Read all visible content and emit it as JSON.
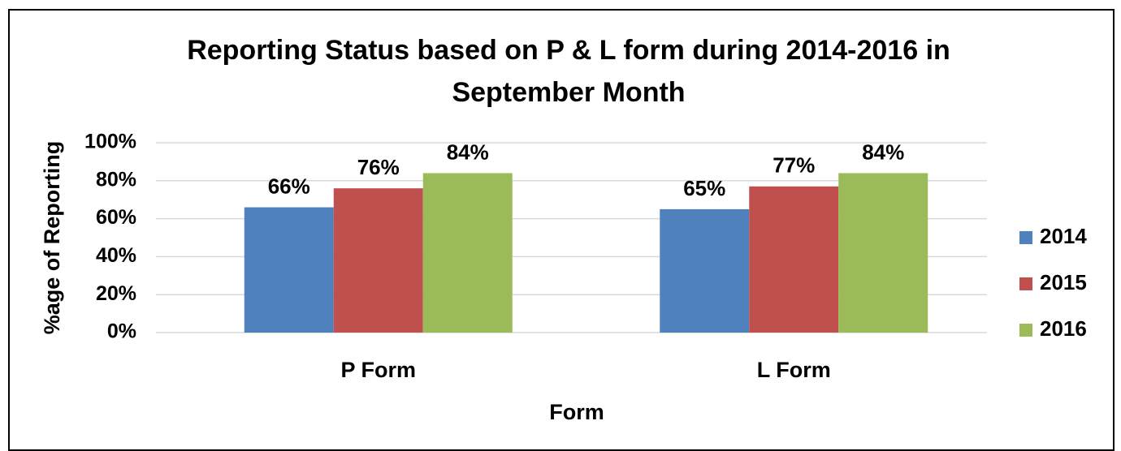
{
  "chart_data": {
    "type": "bar",
    "title": [
      "Reporting Status based on P & L form during 2014-2016 in",
      "September Month"
    ],
    "x_label": "Form",
    "y_label": "%age of Reporting",
    "categories": [
      "P Form",
      "L Form"
    ],
    "series": [
      {
        "name": "2014",
        "color": "#4f81bd",
        "values": [
          66,
          65
        ],
        "value_labels": [
          "66%",
          "65%"
        ]
      },
      {
        "name": "2015",
        "color": "#c0504d",
        "values": [
          76,
          77
        ],
        "value_labels": [
          "76%",
          "77%"
        ]
      },
      {
        "name": "2016",
        "color": "#9bbb59",
        "values": [
          84,
          84
        ],
        "value_labels": [
          "84%",
          "84%"
        ]
      }
    ],
    "ylim": [
      0,
      100
    ],
    "yticks": [
      {
        "value": 0,
        "label": "0%"
      },
      {
        "value": 20,
        "label": "20%"
      },
      {
        "value": 40,
        "label": "40%"
      },
      {
        "value": 60,
        "label": "60%"
      },
      {
        "value": 80,
        "label": "80%"
      },
      {
        "value": 100,
        "label": "100%"
      }
    ],
    "grid": true,
    "legend": "right"
  }
}
